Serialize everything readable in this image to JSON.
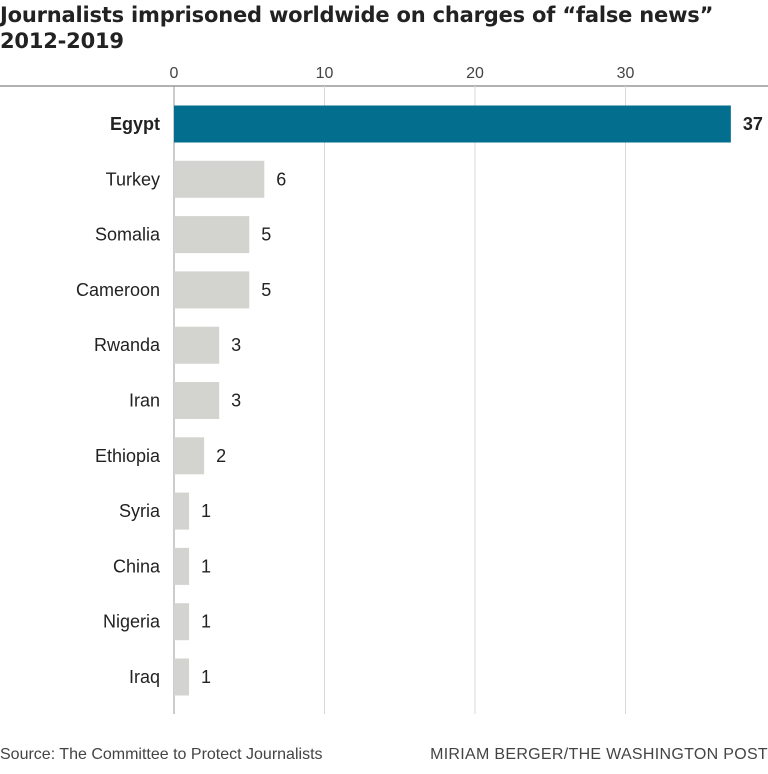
{
  "title_line1": "Journalists imprisoned worldwide on charges of “false news”",
  "title_line2": "2012-2019",
  "source": "Source: The Committee to Protect Journalists",
  "credit": "MIRIAM BERGER/THE WASHINGTON POST",
  "colors": {
    "highlight": "#046e8f",
    "bar": "#d3d3d0",
    "grid": "#d8d8d8",
    "text": "#222222"
  },
  "chart_data": {
    "type": "bar",
    "orientation": "horizontal",
    "categories": [
      "Egypt",
      "Turkey",
      "Somalia",
      "Cameroon",
      "Rwanda",
      "Iran",
      "Ethiopia",
      "Syria",
      "China",
      "Nigeria",
      "Iraq"
    ],
    "values": [
      37,
      6,
      5,
      5,
      3,
      3,
      2,
      1,
      1,
      1,
      1
    ],
    "highlight_category": "Egypt",
    "x_ticks": [
      0,
      10,
      20,
      30
    ],
    "xlim": [
      0,
      37
    ],
    "grid": true,
    "tick_position": "top"
  }
}
